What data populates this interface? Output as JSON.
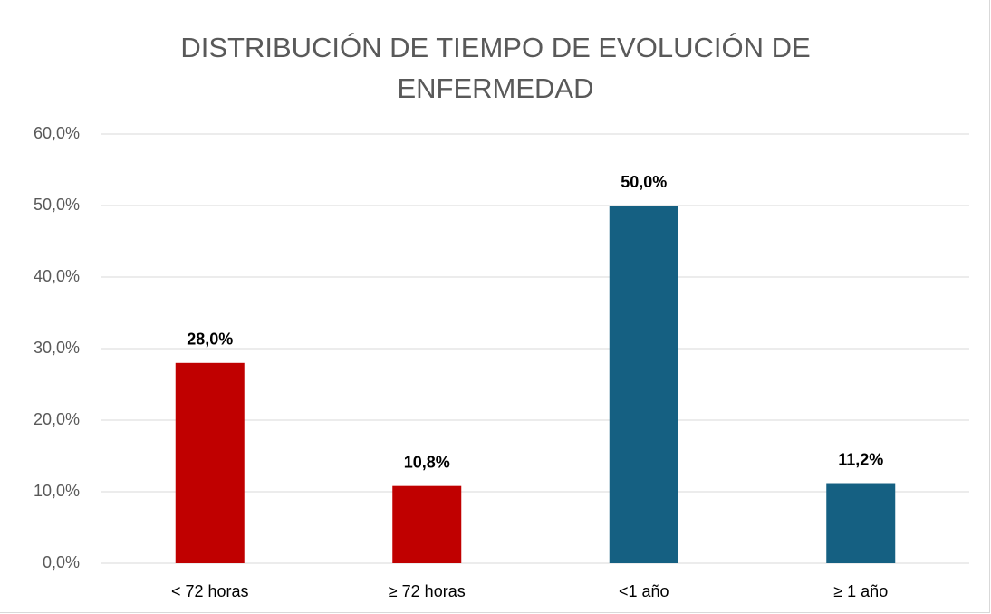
{
  "chart_data": {
    "type": "bar",
    "title": "DISTRIBUCIÓN DE TIEMPO DE EVOLUCIÓN DE ENFERMEDAD",
    "categories": [
      "< 72 horas",
      "≥ 72 horas",
      "<1 año",
      "≥ 1 año"
    ],
    "values": [
      28,
      10.8,
      50,
      11.2
    ],
    "value_labels": [
      "28,0%",
      "10,8%",
      "50,0%",
      "11,2%"
    ],
    "colors": [
      "#c00000",
      "#c00000",
      "#156082",
      "#156082"
    ],
    "ylim": [
      0,
      60
    ],
    "yticks": [
      {
        "value": 0,
        "label": "0,0%"
      },
      {
        "value": 10,
        "label": "10,0%"
      },
      {
        "value": 20,
        "label": "20,0%"
      },
      {
        "value": 30,
        "label": "30,0%"
      },
      {
        "value": 40,
        "label": "40,0%"
      },
      {
        "value": 50,
        "label": "50,0%"
      },
      {
        "value": 60,
        "label": "60,0%"
      }
    ],
    "grid": true
  }
}
